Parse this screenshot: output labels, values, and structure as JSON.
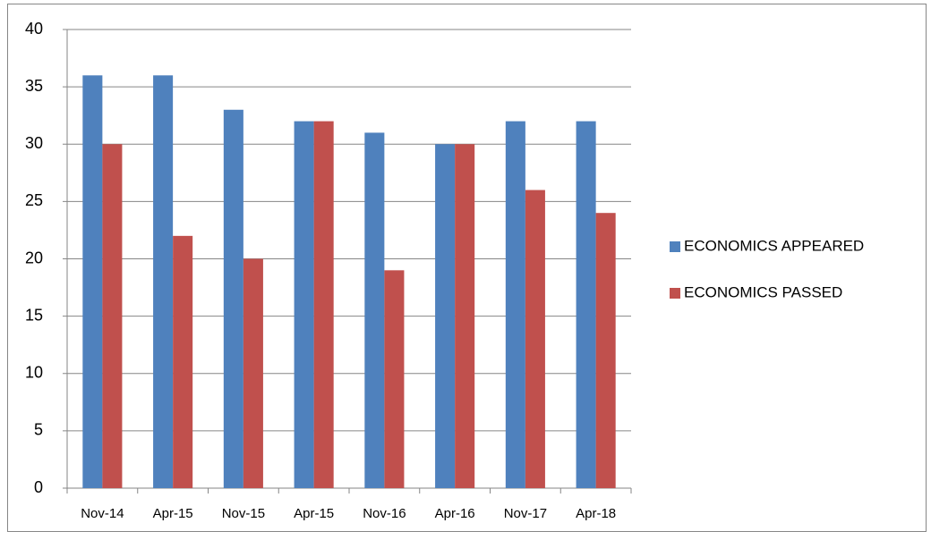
{
  "chart_data": {
    "type": "bar",
    "categories": [
      "Nov-14",
      "Apr-15",
      "Nov-15",
      "Apr-15",
      "Nov-16",
      "Apr-16",
      "Nov-17",
      "Apr-18"
    ],
    "series": [
      {
        "name": "ECONOMICS APPEARED",
        "color": "#4f81bd",
        "values": [
          36,
          36,
          33,
          32,
          31,
          30,
          32,
          32
        ]
      },
      {
        "name": "ECONOMICS PASSED",
        "color": "#c0504d",
        "values": [
          30,
          22,
          20,
          32,
          19,
          30,
          26,
          24
        ]
      }
    ],
    "ylim": [
      0,
      40
    ],
    "yticks": [
      0,
      5,
      10,
      15,
      20,
      25,
      30,
      35,
      40
    ],
    "grid": true,
    "legend": "right"
  }
}
